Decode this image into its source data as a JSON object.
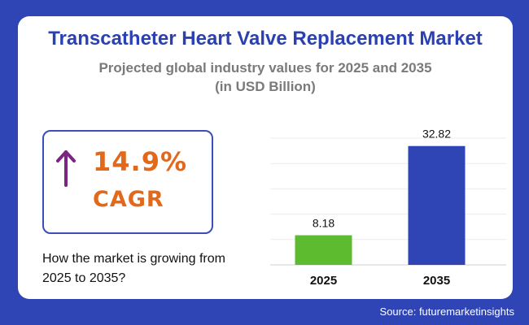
{
  "header": {
    "title": "Transcatheter Heart Valve Replacement Market",
    "subtitle_line1": "Projected global industry values for 2025 and 2035",
    "subtitle_line2": "(in USD Billion)"
  },
  "cagr": {
    "value": "14.9%",
    "label": "CAGR",
    "icon": "arrow-up-icon",
    "arrow_color": "#7b2482",
    "text_color": "#e2691c"
  },
  "growth_text": "How the market is growing from 2025 to 2035?",
  "source": "Source: futuremarketinsights",
  "chart_data": {
    "type": "bar",
    "categories": [
      "2025",
      "2035"
    ],
    "values": [
      8.18,
      32.82
    ],
    "data_labels": [
      "8.18",
      "32.82"
    ],
    "colors": [
      "#5dbb2f",
      "#2f45b5"
    ],
    "ylim": [
      0,
      35
    ],
    "grid": true
  }
}
